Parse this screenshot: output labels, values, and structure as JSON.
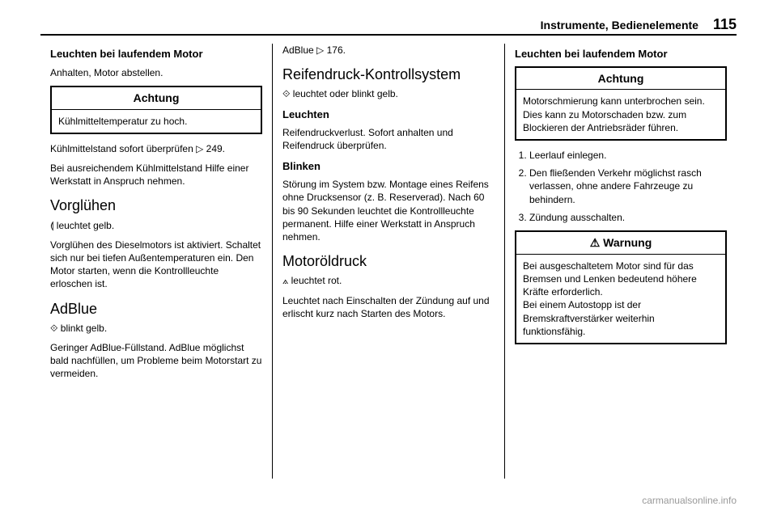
{
  "header": {
    "section_title": "Instrumente, Bedienelemente",
    "page_number": "115"
  },
  "col1": {
    "h1": "Leuchten bei laufendem Motor",
    "p1": "Anhalten, Motor abstellen.",
    "box1_title": "Achtung",
    "box1_body": "Kühlmitteltemperatur zu hoch.",
    "p2": "Kühlmittelstand sofort überprüfen ▷ 249.",
    "p3": "Bei ausreichendem Kühlmittelstand Hilfe einer Werkstatt in Anspruch nehmen.",
    "h2": "Vorglühen",
    "p4": "⟬ leuchtet gelb.",
    "p5": "Vorglühen des Dieselmotors ist akti­viert. Schaltet sich nur bei tiefen Außentemperaturen ein. Den Motor starten, wenn die Kontrollleuchte erloschen ist.",
    "h3": "AdBlue",
    "p6": "⟐ blinkt gelb.",
    "p7": "Geringer AdBlue-Füllstand. AdBlue möglichst bald nachfüllen, um Probleme beim Motorstart zu vermei­den."
  },
  "col2": {
    "p1": "AdBlue ▷ 176.",
    "h1": "Reifendruck-Kontrollsystem",
    "p2": "⟐ leuchtet oder blinkt gelb.",
    "h2": "Leuchten",
    "p3": "Reifendruckverlust. Sofort anhalten und Reifendruck überprüfen.",
    "h3": "Blinken",
    "p4": "Störung im System bzw. Montage eines Reifens ohne Drucksensor (z. B. Reserverad). Nach 60 bis 90 Sekunden leuchtet die Kontrollleuchte permanent. Hilfe einer Werkstatt in Anspruch nehmen.",
    "h4": "Motoröldruck",
    "p5": "⟑ leuchtet rot.",
    "p6": "Leuchtet nach Einschalten der Zündung auf und erlischt kurz nach Starten des Motors."
  },
  "col3": {
    "h1": "Leuchten bei laufendem Motor",
    "box1_title": "Achtung",
    "box1_body": "Motorschmierung kann unterbro­chen sein. Dies kann zu Motor­schaden bzw. zum Blockieren der Antriebsräder führen.",
    "li1": "Leerlauf einlegen.",
    "li2": "Den fließenden Verkehr möglichst rasch verlassen, ohne andere Fahrzeuge zu behindern.",
    "li3": "Zündung ausschalten.",
    "box2_title": "⚠ Warnung",
    "box2_body": "Bei ausgeschaltetem Motor sind für das Bremsen und Lenken bedeutend höhere Kräfte erforder­lich.\nBei einem Autostopp ist der Bremskraftverstärker weiterhin funktionsfähig."
  },
  "footer": "carmanualsonline.info"
}
